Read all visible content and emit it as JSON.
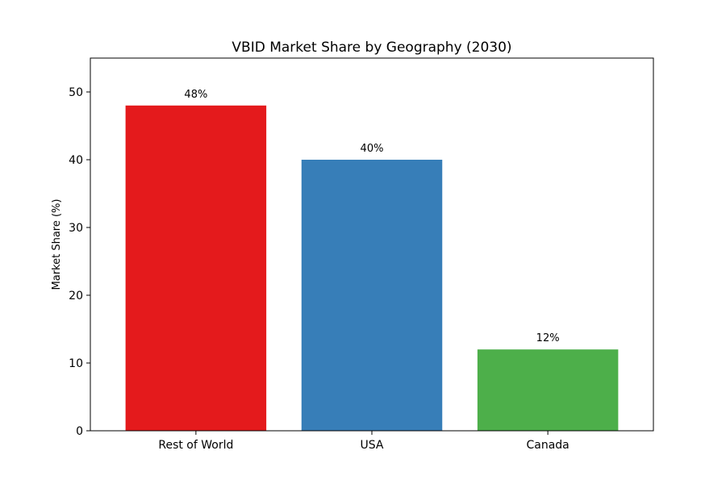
{
  "chart_data": {
    "type": "bar",
    "title": "VBID Market Share by Geography (2030)",
    "xlabel": "",
    "ylabel": "Market Share (%)",
    "categories": [
      "Rest of World",
      "USA",
      "Canada"
    ],
    "values": [
      48,
      40,
      12
    ],
    "data_labels": [
      "48%",
      "40%",
      "12%"
    ],
    "colors": [
      "#e41a1c",
      "#377eb8",
      "#4daf4a"
    ],
    "ylim": [
      0,
      55
    ],
    "yticks": [
      0,
      10,
      20,
      30,
      40,
      50
    ],
    "grid": false,
    "legend": "none"
  }
}
